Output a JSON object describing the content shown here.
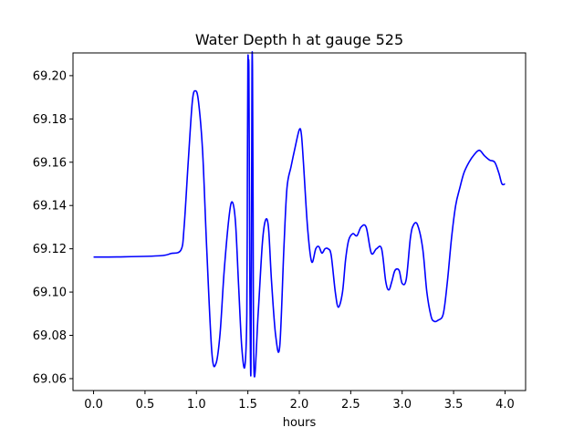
{
  "chart_data": {
    "type": "line",
    "title": "Water Depth h at gauge 525",
    "xlabel": "hours",
    "ylabel": "",
    "xlim": [
      -0.2,
      4.2
    ],
    "ylim": [
      69.0545,
      69.2105
    ],
    "x_ticks": [
      0.0,
      0.5,
      1.0,
      1.5,
      2.0,
      2.5,
      3.0,
      3.5,
      4.0
    ],
    "x_tick_labels": [
      "0.0",
      "0.5",
      "1.0",
      "1.5",
      "2.0",
      "2.5",
      "3.0",
      "3.5",
      "4.0"
    ],
    "y_ticks": [
      69.06,
      69.08,
      69.1,
      69.12,
      69.14,
      69.16,
      69.18,
      69.2
    ],
    "y_tick_labels": [
      "69.06",
      "69.08",
      "69.10",
      "69.12",
      "69.14",
      "69.16",
      "69.18",
      "69.20"
    ],
    "grid": false,
    "legend": "none",
    "series": [
      {
        "color": "#0000ff",
        "x": [
          0.0,
          0.3,
          0.65,
          0.75,
          0.85,
          0.88,
          0.92,
          0.96,
          0.99,
          1.02,
          1.06,
          1.1,
          1.15,
          1.19,
          1.23,
          1.27,
          1.32,
          1.35,
          1.38,
          1.41,
          1.44,
          1.47,
          1.49,
          1.495,
          1.5,
          1.505,
          1.51,
          1.515,
          1.52,
          1.525,
          1.53,
          1.535,
          1.54,
          1.545,
          1.55,
          1.56,
          1.6,
          1.64,
          1.67,
          1.7,
          1.73,
          1.77,
          1.81,
          1.85,
          1.88,
          1.92,
          1.96,
          2.0,
          2.02,
          2.04,
          2.08,
          2.12,
          2.16,
          2.19,
          2.22,
          2.25,
          2.28,
          2.31,
          2.35,
          2.38,
          2.42,
          2.45,
          2.48,
          2.52,
          2.56,
          2.6,
          2.65,
          2.7,
          2.75,
          2.8,
          2.84,
          2.87,
          2.9,
          2.93,
          2.97,
          3.0,
          3.04,
          3.08,
          3.11,
          3.15,
          3.2,
          3.24,
          3.28,
          3.31,
          3.35,
          3.4,
          3.44,
          3.48,
          3.52,
          3.56,
          3.6,
          3.65,
          3.7,
          3.75,
          3.8,
          3.85,
          3.9,
          3.94,
          3.97,
          4.0
        ],
        "y": [
          69.1162,
          69.1163,
          69.1168,
          69.1178,
          69.1195,
          69.13,
          69.16,
          69.188,
          69.193,
          69.188,
          69.165,
          69.12,
          69.072,
          69.067,
          69.081,
          69.11,
          69.136,
          69.1415,
          69.132,
          69.103,
          69.075,
          69.0655,
          69.09,
          69.15,
          69.205,
          69.206,
          69.202,
          69.15,
          69.1,
          69.07,
          69.065,
          69.12,
          69.202,
          69.203,
          69.15,
          69.063,
          69.09,
          69.122,
          69.133,
          69.13,
          69.105,
          69.08,
          69.075,
          69.12,
          69.148,
          69.158,
          69.167,
          69.175,
          69.173,
          69.16,
          69.13,
          69.114,
          69.12,
          69.121,
          69.118,
          69.12,
          69.12,
          69.117,
          69.1,
          69.093,
          69.1,
          69.115,
          69.124,
          69.127,
          69.126,
          69.13,
          69.13,
          69.118,
          69.12,
          69.12,
          69.105,
          69.101,
          69.105,
          69.11,
          69.11,
          69.104,
          69.106,
          69.125,
          69.131,
          69.131,
          69.12,
          69.1,
          69.089,
          69.0865,
          69.087,
          69.09,
          69.105,
          69.125,
          69.14,
          69.148,
          69.155,
          69.16,
          69.1635,
          69.1655,
          69.163,
          69.161,
          69.16,
          69.155,
          69.15,
          69.15
        ]
      }
    ]
  }
}
